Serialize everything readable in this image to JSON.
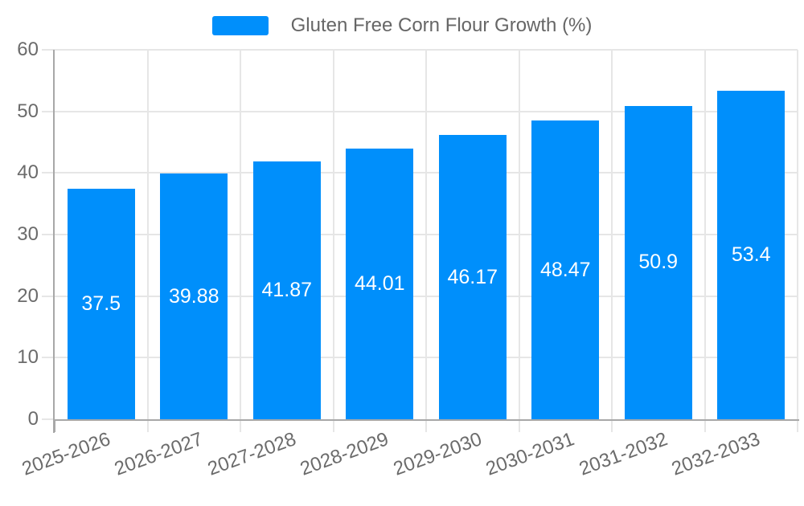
{
  "chart_data": {
    "type": "bar",
    "title": "Gluten Free Corn Flour Growth (%)",
    "categories": [
      "2025-2026",
      "2026-2027",
      "2027-2028",
      "2028-2029",
      "2029-2030",
      "2030-2031",
      "2031-2032",
      "2032-2033"
    ],
    "values": [
      37.5,
      39.88,
      41.87,
      44.01,
      46.17,
      48.47,
      50.9,
      53.4
    ],
    "value_labels": [
      "37.5",
      "39.88",
      "41.87",
      "44.01",
      "46.17",
      "48.47",
      "50.9",
      "53.4"
    ],
    "xlabel": "",
    "ylabel": "",
    "ylim": [
      0,
      60
    ],
    "yticks": [
      0,
      10,
      20,
      30,
      40,
      50,
      60
    ],
    "grid": true,
    "legend_position": "top",
    "legend_entries": [
      "Gluten Free Corn Flour Growth (%)"
    ],
    "colors": {
      "bar": "#008FFB",
      "data_label": "#FFFFFF",
      "axis_text": "#6B6B6B",
      "legend_text": "#666666",
      "gridline": "#E6E6E6",
      "axis_line": "#A8A8A8",
      "background": "#FFFFFF"
    }
  }
}
